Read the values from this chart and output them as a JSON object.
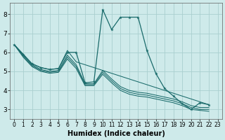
{
  "xlabel": "Humidex (Indice chaleur)",
  "background_color": "#ceeaea",
  "grid_color": "#aacfcf",
  "line_color": "#1a6b6b",
  "xlim": [
    -0.5,
    23.5
  ],
  "ylim": [
    2.5,
    8.6
  ],
  "xticks": [
    0,
    1,
    2,
    3,
    4,
    5,
    6,
    7,
    8,
    9,
    10,
    11,
    12,
    13,
    14,
    15,
    16,
    17,
    18,
    19,
    20,
    21,
    22,
    23
  ],
  "yticks": [
    3,
    4,
    5,
    6,
    7,
    8
  ],
  "series": {
    "main": {
      "x": [
        0,
        1,
        2,
        3,
        4,
        5,
        6,
        7,
        8,
        9,
        10,
        11,
        12,
        13,
        14,
        15,
        16,
        17,
        18,
        19,
        20,
        21,
        22
      ],
      "y": [
        6.4,
        5.9,
        5.4,
        5.2,
        5.1,
        5.15,
        6.0,
        6.0,
        4.4,
        4.45,
        8.25,
        7.2,
        7.85,
        7.85,
        7.85,
        6.1,
        4.9,
        4.1,
        3.7,
        3.3,
        3.0,
        3.35,
        3.25
      ]
    },
    "bundle": [
      {
        "x": [
          0,
          1,
          2,
          3,
          4,
          5,
          6,
          7,
          22
        ],
        "y": [
          6.4,
          5.9,
          5.4,
          5.2,
          5.1,
          5.15,
          6.1,
          5.5,
          3.25
        ]
      },
      {
        "x": [
          0,
          1,
          2,
          3,
          4,
          5,
          6,
          7,
          8,
          9,
          10,
          11,
          12,
          13,
          14,
          15,
          16,
          17,
          18,
          19,
          20,
          21,
          22
        ],
        "y": [
          6.4,
          5.85,
          5.35,
          5.1,
          5.0,
          5.05,
          5.85,
          5.35,
          4.35,
          4.35,
          5.05,
          4.6,
          4.2,
          4.0,
          3.9,
          3.85,
          3.75,
          3.65,
          3.55,
          3.4,
          3.2,
          3.1,
          3.1
        ]
      },
      {
        "x": [
          0,
          1,
          2,
          3,
          4,
          5,
          6,
          7,
          8,
          9,
          10,
          11,
          12,
          13,
          14,
          15,
          16,
          17,
          18,
          19,
          20,
          21,
          22
        ],
        "y": [
          6.4,
          5.8,
          5.3,
          5.05,
          4.95,
          5.0,
          5.75,
          5.25,
          4.3,
          4.3,
          4.95,
          4.5,
          4.1,
          3.9,
          3.8,
          3.75,
          3.65,
          3.55,
          3.45,
          3.3,
          3.1,
          3.0,
          3.0
        ]
      },
      {
        "x": [
          0,
          1,
          2,
          3,
          4,
          5,
          6,
          7,
          8,
          9,
          10,
          11,
          12,
          13,
          14,
          15,
          16,
          17,
          18,
          19,
          20,
          21,
          22
        ],
        "y": [
          6.4,
          5.75,
          5.25,
          5.0,
          4.9,
          4.95,
          5.65,
          5.15,
          4.25,
          4.25,
          4.85,
          4.4,
          4.0,
          3.8,
          3.7,
          3.65,
          3.55,
          3.45,
          3.35,
          3.2,
          3.0,
          2.95,
          2.9
        ]
      }
    ]
  }
}
